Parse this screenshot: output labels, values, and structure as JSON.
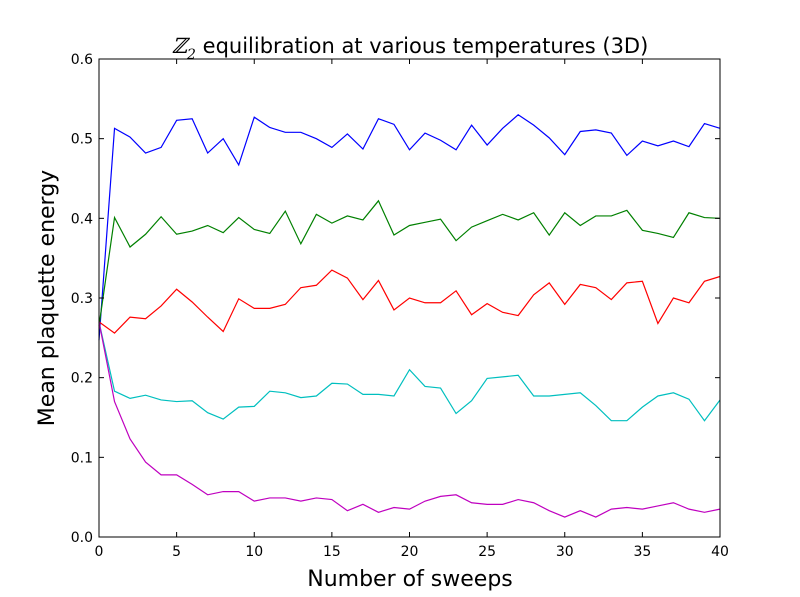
{
  "chart_data": {
    "type": "line",
    "title": {
      "symbol": "ℤ",
      "subscript": "2",
      "text": " equilibration at various temperatures (3D)"
    },
    "xlabel": "Number of sweeps",
    "ylabel": "Mean plaquette energy",
    "xlim": [
      0,
      40
    ],
    "ylim": [
      0.0,
      0.6
    ],
    "xticks": [
      0,
      5,
      10,
      15,
      20,
      25,
      30,
      35,
      40
    ],
    "xtick_labels": [
      "0",
      "5",
      "10",
      "15",
      "20",
      "25",
      "30",
      "35",
      "40"
    ],
    "yticks": [
      0.0,
      0.1,
      0.2,
      0.3,
      0.4,
      0.5,
      0.6
    ],
    "ytick_labels": [
      "0.0",
      "0.1",
      "0.2",
      "0.3",
      "0.4",
      "0.5",
      "0.6"
    ],
    "grid": false,
    "x": [
      0,
      1,
      2,
      3,
      4,
      5,
      6,
      7,
      8,
      9,
      10,
      11,
      12,
      13,
      14,
      15,
      16,
      17,
      18,
      19,
      20,
      21,
      22,
      23,
      24,
      25,
      26,
      27,
      28,
      29,
      30,
      31,
      32,
      33,
      34,
      35,
      36,
      37,
      38,
      39,
      40
    ],
    "series": [
      {
        "name": "blue",
        "color": "#0000ff",
        "values": [
          0.247,
          0.513,
          0.502,
          0.482,
          0.489,
          0.523,
          0.525,
          0.482,
          0.5,
          0.467,
          0.527,
          0.514,
          0.508,
          0.508,
          0.5,
          0.489,
          0.506,
          0.487,
          0.525,
          0.518,
          0.486,
          0.507,
          0.498,
          0.486,
          0.517,
          0.492,
          0.513,
          0.53,
          0.517,
          0.501,
          0.48,
          0.509,
          0.511,
          0.507,
          0.479,
          0.497,
          0.491,
          0.497,
          0.49,
          0.519,
          0.513
        ]
      },
      {
        "name": "green",
        "color": "#008000",
        "values": [
          0.265,
          0.401,
          0.364,
          0.38,
          0.402,
          0.38,
          0.384,
          0.391,
          0.382,
          0.401,
          0.386,
          0.381,
          0.409,
          0.368,
          0.405,
          0.394,
          0.403,
          0.398,
          0.422,
          0.379,
          0.391,
          0.395,
          0.399,
          0.372,
          0.389,
          0.397,
          0.405,
          0.398,
          0.407,
          0.379,
          0.407,
          0.391,
          0.403,
          0.403,
          0.41,
          0.385,
          0.381,
          0.376,
          0.407,
          0.401,
          0.4
        ]
      },
      {
        "name": "red",
        "color": "#ff0000",
        "values": [
          0.27,
          0.256,
          0.276,
          0.274,
          0.29,
          0.311,
          0.295,
          0.276,
          0.258,
          0.299,
          0.287,
          0.287,
          0.292,
          0.313,
          0.316,
          0.335,
          0.325,
          0.298,
          0.322,
          0.285,
          0.3,
          0.294,
          0.294,
          0.309,
          0.279,
          0.293,
          0.282,
          0.278,
          0.304,
          0.319,
          0.292,
          0.317,
          0.313,
          0.298,
          0.319,
          0.321,
          0.268,
          0.3,
          0.294,
          0.321,
          0.327
        ]
      },
      {
        "name": "cyan",
        "color": "#00bfbf",
        "values": [
          0.27,
          0.183,
          0.174,
          0.178,
          0.172,
          0.17,
          0.171,
          0.156,
          0.148,
          0.163,
          0.164,
          0.183,
          0.181,
          0.175,
          0.177,
          0.193,
          0.192,
          0.179,
          0.179,
          0.177,
          0.21,
          0.189,
          0.187,
          0.155,
          0.171,
          0.199,
          0.201,
          0.203,
          0.177,
          0.177,
          0.179,
          0.181,
          0.165,
          0.146,
          0.146,
          0.163,
          0.177,
          0.181,
          0.173,
          0.146,
          0.172
        ]
      },
      {
        "name": "magenta",
        "color": "#bf00bf",
        "values": [
          0.27,
          0.17,
          0.123,
          0.094,
          0.078,
          0.078,
          0.066,
          0.053,
          0.057,
          0.057,
          0.045,
          0.049,
          0.049,
          0.045,
          0.049,
          0.047,
          0.033,
          0.041,
          0.031,
          0.037,
          0.035,
          0.045,
          0.051,
          0.053,
          0.043,
          0.041,
          0.041,
          0.047,
          0.043,
          0.033,
          0.025,
          0.033,
          0.025,
          0.035,
          0.037,
          0.035,
          0.039,
          0.043,
          0.035,
          0.031,
          0.035
        ]
      }
    ]
  }
}
